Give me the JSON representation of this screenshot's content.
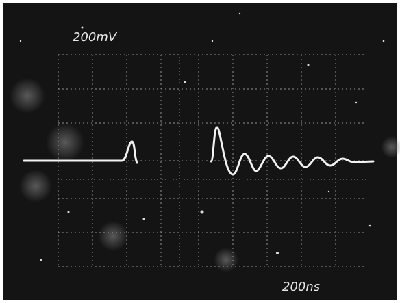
{
  "labels": {
    "vertical_scale": "200mV",
    "horizontal_scale": "200ns"
  }
}
